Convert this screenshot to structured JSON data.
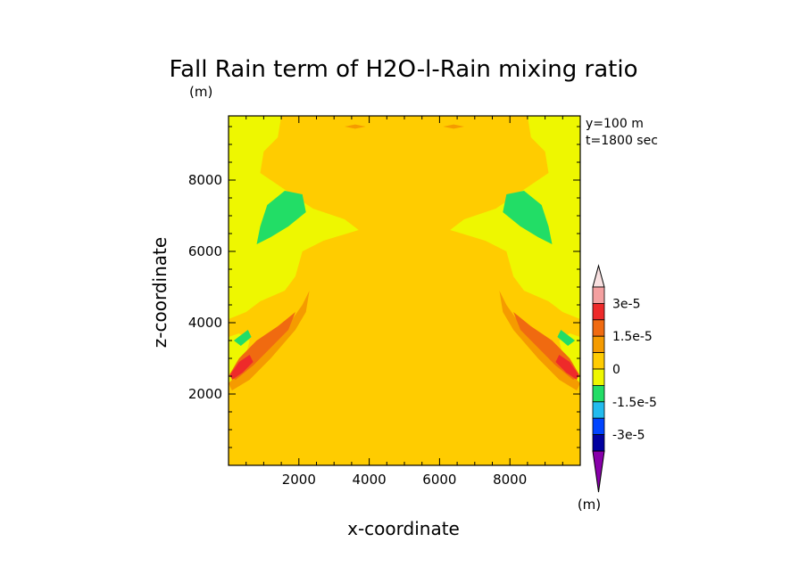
{
  "chart_data": {
    "type": "heatmap",
    "title": "Fall Rain term of H2O-l-Rain mixing ratio",
    "title_unit": "(m)",
    "annotations": [
      "y=100 m",
      "t=1800 sec"
    ],
    "xlabel": "x-coordinate",
    "ylabel": "z-coordinate",
    "xlim": [
      0,
      10000
    ],
    "ylim": [
      0,
      9800
    ],
    "xticks": [
      "2000",
      "4000",
      "6000",
      "8000"
    ],
    "xtick_values": [
      2000,
      4000,
      6000,
      8000
    ],
    "yticks": [
      "2000",
      "4000",
      "6000",
      "8000"
    ],
    "ytick_values": [
      2000,
      4000,
      6000,
      8000
    ],
    "colorbar": {
      "unit": "(m)",
      "tick_labels": [
        "3e-5",
        "1.5e-5",
        "0",
        "-1.5e-5",
        "-3e-5"
      ],
      "levels_top_to_bottom": [
        "#f8e0e0",
        "#f4a0a0",
        "#ee2a2a",
        "#f06a10",
        "#f59b00",
        "#ffcc00",
        "#eef700",
        "#22dd66",
        "#22bbee",
        "#0044ff",
        "#0000a0",
        "#8800aa"
      ]
    },
    "field_colors": {
      "background": "#ffcc00",
      "weak_negative": "#eef700",
      "negative": "#22dd66",
      "weak_positive": "#f59b00",
      "positive": "#f06a10",
      "strong_positive": "#ee2a2a"
    },
    "regions": [
      {
        "level": "weak_negative",
        "side": "left",
        "points": [
          [
            0,
            9800
          ],
          [
            1500,
            9800
          ],
          [
            1400,
            9200
          ],
          [
            1000,
            8800
          ],
          [
            900,
            8200
          ],
          [
            1500,
            7800
          ],
          [
            2400,
            7200
          ],
          [
            3300,
            6900
          ],
          [
            3700,
            6600
          ],
          [
            2700,
            6300
          ],
          [
            2100,
            6000
          ],
          [
            1900,
            5300
          ],
          [
            1600,
            4900
          ],
          [
            900,
            4600
          ],
          [
            500,
            4300
          ],
          [
            0,
            4100
          ]
        ]
      },
      {
        "level": "weak_negative",
        "side": "right",
        "points": [
          [
            10000,
            9800
          ],
          [
            8500,
            9800
          ],
          [
            8600,
            9200
          ],
          [
            9000,
            8800
          ],
          [
            9100,
            8200
          ],
          [
            8500,
            7800
          ],
          [
            7600,
            7200
          ],
          [
            6700,
            6900
          ],
          [
            6300,
            6600
          ],
          [
            7300,
            6300
          ],
          [
            7900,
            6000
          ],
          [
            8100,
            5300
          ],
          [
            8400,
            4900
          ],
          [
            9100,
            4600
          ],
          [
            9500,
            4300
          ],
          [
            10000,
            4100
          ]
        ]
      },
      {
        "level": "weak_negative",
        "side": "left",
        "points": [
          [
            0,
            2300
          ],
          [
            400,
            2700
          ],
          [
            600,
            3500
          ],
          [
            300,
            3700
          ],
          [
            0,
            3600
          ]
        ]
      },
      {
        "level": "weak_negative",
        "side": "right",
        "points": [
          [
            10000,
            2300
          ],
          [
            9600,
            2700
          ],
          [
            9400,
            3500
          ],
          [
            9700,
            3700
          ],
          [
            10000,
            3600
          ]
        ]
      },
      {
        "level": "negative",
        "side": "left",
        "points": [
          [
            1100,
            7300
          ],
          [
            1600,
            7700
          ],
          [
            2100,
            7600
          ],
          [
            2200,
            7100
          ],
          [
            1700,
            6700
          ],
          [
            1200,
            6400
          ],
          [
            800,
            6200
          ],
          [
            900,
            6700
          ]
        ]
      },
      {
        "level": "negative",
        "side": "right",
        "points": [
          [
            8900,
            7300
          ],
          [
            8400,
            7700
          ],
          [
            7900,
            7600
          ],
          [
            7800,
            7100
          ],
          [
            8300,
            6700
          ],
          [
            8800,
            6400
          ],
          [
            9200,
            6200
          ],
          [
            9100,
            6700
          ]
        ]
      },
      {
        "level": "negative",
        "side": "left",
        "points": [
          [
            150,
            3500
          ],
          [
            550,
            3800
          ],
          [
            650,
            3600
          ],
          [
            350,
            3350
          ]
        ]
      },
      {
        "level": "negative",
        "side": "right",
        "points": [
          [
            9850,
            3500
          ],
          [
            9450,
            3800
          ],
          [
            9350,
            3600
          ],
          [
            9650,
            3350
          ]
        ]
      },
      {
        "level": "weak_positive",
        "side": "left",
        "points": [
          [
            0,
            2300
          ],
          [
            400,
            2700
          ],
          [
            1000,
            3300
          ],
          [
            1600,
            3800
          ],
          [
            2100,
            4500
          ],
          [
            2300,
            4900
          ],
          [
            2200,
            4300
          ],
          [
            1900,
            3800
          ],
          [
            1200,
            3000
          ],
          [
            600,
            2400
          ],
          [
            100,
            2100
          ]
        ]
      },
      {
        "level": "weak_positive",
        "side": "right",
        "points": [
          [
            10000,
            2300
          ],
          [
            9600,
            2700
          ],
          [
            9000,
            3300
          ],
          [
            8400,
            3800
          ],
          [
            7900,
            4500
          ],
          [
            7700,
            4900
          ],
          [
            7800,
            4300
          ],
          [
            8100,
            3800
          ],
          [
            8800,
            3000
          ],
          [
            9400,
            2400
          ],
          [
            9900,
            2100
          ]
        ]
      },
      {
        "level": "positive",
        "side": "left",
        "points": [
          [
            0,
            2500
          ],
          [
            300,
            3000
          ],
          [
            800,
            3500
          ],
          [
            1400,
            3900
          ],
          [
            1900,
            4300
          ],
          [
            1700,
            3800
          ],
          [
            1200,
            3300
          ],
          [
            700,
            2800
          ],
          [
            200,
            2400
          ]
        ]
      },
      {
        "level": "positive",
        "side": "right",
        "points": [
          [
            10000,
            2500
          ],
          [
            9700,
            3000
          ],
          [
            9200,
            3500
          ],
          [
            8600,
            3900
          ],
          [
            8100,
            4300
          ],
          [
            8300,
            3800
          ],
          [
            8800,
            3300
          ],
          [
            9300,
            2800
          ],
          [
            9800,
            2400
          ]
        ]
      },
      {
        "level": "strong_positive",
        "side": "left",
        "points": [
          [
            50,
            2550
          ],
          [
            300,
            2900
          ],
          [
            600,
            3100
          ],
          [
            700,
            2900
          ],
          [
            400,
            2600
          ],
          [
            100,
            2400
          ]
        ]
      },
      {
        "level": "strong_positive",
        "side": "right",
        "points": [
          [
            9950,
            2550
          ],
          [
            9700,
            2900
          ],
          [
            9400,
            3100
          ],
          [
            9300,
            2900
          ],
          [
            9600,
            2600
          ],
          [
            9900,
            2400
          ]
        ]
      },
      {
        "level": "weak_positive",
        "side": "center",
        "points": [
          [
            3300,
            9500
          ],
          [
            3600,
            9560
          ],
          [
            3900,
            9500
          ],
          [
            3600,
            9440
          ]
        ]
      },
      {
        "level": "weak_positive",
        "side": "center",
        "points": [
          [
            6100,
            9500
          ],
          [
            6400,
            9560
          ],
          [
            6700,
            9500
          ],
          [
            6400,
            9440
          ]
        ]
      }
    ]
  }
}
